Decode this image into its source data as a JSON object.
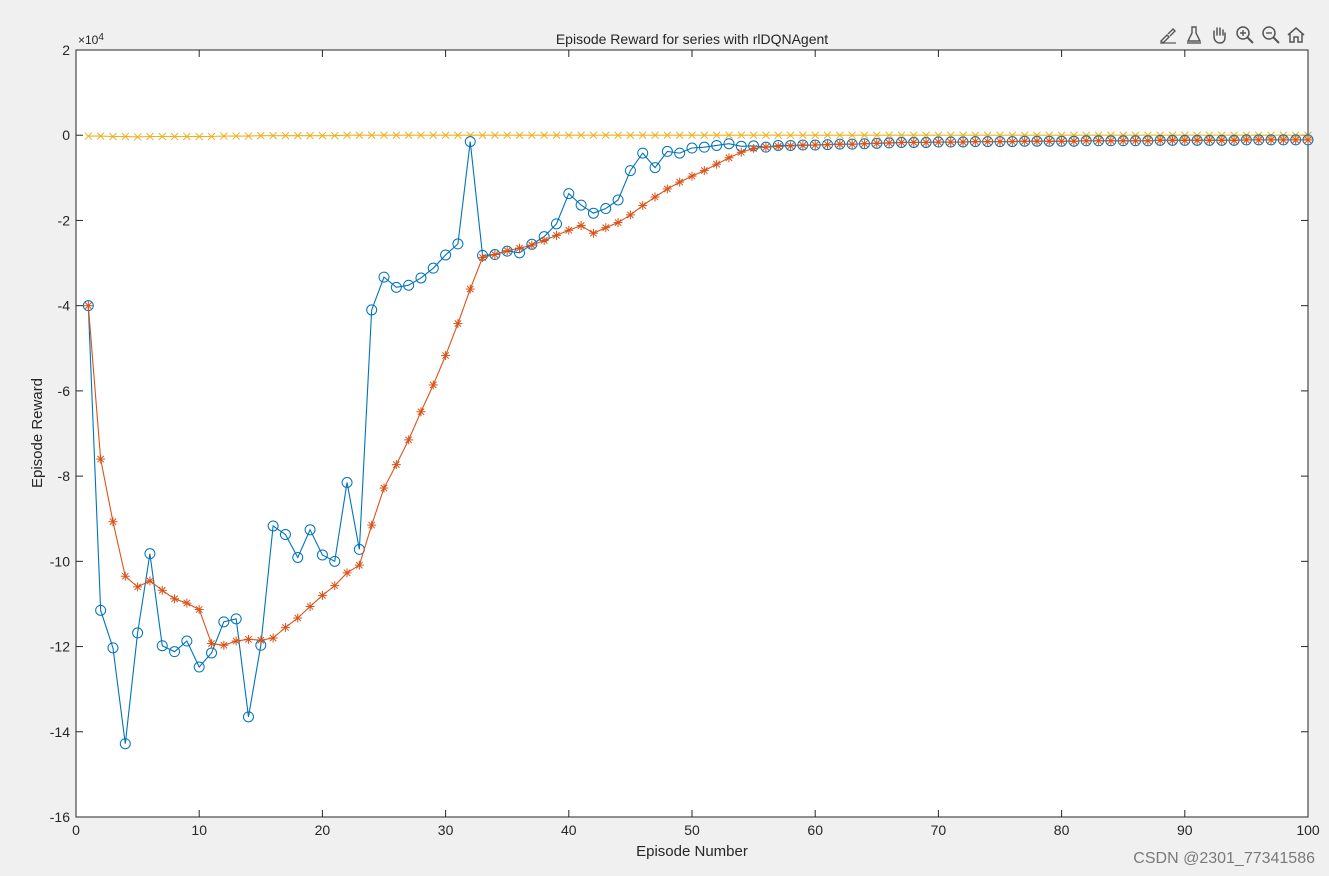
{
  "toolbar": {
    "icons": [
      "brush-icon",
      "data-tips-icon",
      "pan-hand-icon",
      "zoom-in-icon",
      "zoom-out-icon",
      "home-icon"
    ]
  },
  "watermark": "CSDN @2301_77341586",
  "colors": {
    "series_1": "#0072BD",
    "series_2": "#D95319",
    "series_3": "#EDB120",
    "axes_bg": "#ffffff",
    "figure_bg": "#f0f0f0"
  },
  "chart_data": {
    "type": "line",
    "title": "Episode Reward for series with rlDQNAgent",
    "xlabel": "Episode Number",
    "ylabel": "Episode Reward",
    "exponent_label": "×10",
    "exponent_power": "4",
    "xlim": [
      0,
      100
    ],
    "ylim": [
      -16,
      2
    ],
    "y_scale_factor": 10000,
    "xticks": [
      0,
      10,
      20,
      30,
      40,
      50,
      60,
      70,
      80,
      90,
      100
    ],
    "yticks": [
      2,
      0,
      -2,
      -4,
      -6,
      -8,
      -10,
      -12,
      -14,
      -16
    ],
    "grid": false,
    "legend": "none",
    "x": [
      1,
      2,
      3,
      4,
      5,
      6,
      7,
      8,
      9,
      10,
      11,
      12,
      13,
      14,
      15,
      16,
      17,
      18,
      19,
      20,
      21,
      22,
      23,
      24,
      25,
      26,
      27,
      28,
      29,
      30,
      31,
      32,
      33,
      34,
      35,
      36,
      37,
      38,
      39,
      40,
      41,
      42,
      43,
      44,
      45,
      46,
      47,
      48,
      49,
      50,
      51,
      52,
      53,
      54,
      55,
      56,
      57,
      58,
      59,
      60,
      61,
      62,
      63,
      64,
      65,
      66,
      67,
      68,
      69,
      70,
      71,
      72,
      73,
      74,
      75,
      76,
      77,
      78,
      79,
      80,
      81,
      82,
      83,
      84,
      85,
      86,
      87,
      88,
      89,
      90,
      91,
      92,
      93,
      94,
      95,
      96,
      97,
      98,
      99,
      100
    ],
    "series": [
      {
        "marker": "circle",
        "color": "#0072BD",
        "values": [
          -4.0,
          -11.15,
          -12.03,
          -14.28,
          -11.68,
          -9.82,
          -11.98,
          -12.12,
          -11.87,
          -12.48,
          -12.15,
          -11.42,
          -11.35,
          -13.65,
          -11.97,
          -9.17,
          -9.37,
          -9.91,
          -9.26,
          -9.85,
          -10.0,
          -8.15,
          -9.72,
          -4.1,
          -3.33,
          -3.57,
          -3.52,
          -3.35,
          -3.12,
          -2.81,
          -2.55,
          -0.15,
          -2.82,
          -2.8,
          -2.72,
          -2.76,
          -2.56,
          -2.38,
          -2.08,
          -1.37,
          -1.64,
          -1.83,
          -1.72,
          -1.52,
          -0.83,
          -0.42,
          -0.76,
          -0.38,
          -0.42,
          -0.3,
          -0.28,
          -0.24,
          -0.2,
          -0.26,
          -0.25,
          -0.28,
          -0.24,
          -0.24,
          -0.23,
          -0.23,
          -0.22,
          -0.21,
          -0.21,
          -0.2,
          -0.19,
          -0.18,
          -0.17,
          -0.17,
          -0.17,
          -0.16,
          -0.16,
          -0.16,
          -0.15,
          -0.15,
          -0.15,
          -0.15,
          -0.14,
          -0.14,
          -0.14,
          -0.14,
          -0.14,
          -0.13,
          -0.13,
          -0.13,
          -0.13,
          -0.13,
          -0.13,
          -0.12,
          -0.12,
          -0.12,
          -0.12,
          -0.12,
          -0.12,
          -0.12,
          -0.11,
          -0.11,
          -0.11,
          -0.11,
          -0.11,
          -0.11
        ]
      },
      {
        "marker": "asterisk",
        "color": "#D95319",
        "values": [
          -4.0,
          -7.6,
          -9.07,
          -10.35,
          -10.6,
          -10.46,
          -10.68,
          -10.88,
          -10.98,
          -11.13,
          -11.93,
          -11.97,
          -11.87,
          -11.83,
          -11.85,
          -11.8,
          -11.55,
          -11.33,
          -11.06,
          -10.8,
          -10.57,
          -10.27,
          -10.09,
          -9.15,
          -8.28,
          -7.73,
          -7.15,
          -6.49,
          -5.86,
          -5.17,
          -4.42,
          -3.61,
          -2.87,
          -2.8,
          -2.71,
          -2.65,
          -2.58,
          -2.47,
          -2.35,
          -2.23,
          -2.12,
          -2.3,
          -2.17,
          -2.05,
          -1.87,
          -1.65,
          -1.45,
          -1.26,
          -1.1,
          -0.96,
          -0.83,
          -0.68,
          -0.53,
          -0.4,
          -0.31,
          -0.28,
          -0.26,
          -0.25,
          -0.24,
          -0.23,
          -0.22,
          -0.21,
          -0.21,
          -0.2,
          -0.19,
          -0.18,
          -0.17,
          -0.17,
          -0.17,
          -0.16,
          -0.16,
          -0.16,
          -0.15,
          -0.15,
          -0.15,
          -0.15,
          -0.14,
          -0.14,
          -0.14,
          -0.14,
          -0.14,
          -0.13,
          -0.13,
          -0.13,
          -0.13,
          -0.13,
          -0.13,
          -0.12,
          -0.12,
          -0.12,
          -0.12,
          -0.12,
          -0.12,
          -0.12,
          -0.11,
          -0.11,
          -0.11,
          -0.11,
          -0.11,
          -0.11
        ]
      },
      {
        "marker": "x",
        "color": "#EDB120",
        "values": [
          -0.02,
          -0.02,
          -0.03,
          -0.03,
          -0.04,
          -0.03,
          -0.03,
          -0.03,
          -0.03,
          -0.03,
          -0.03,
          -0.02,
          -0.02,
          -0.02,
          -0.01,
          -0.01,
          -0.01,
          -0.01,
          -0.01,
          -0.01,
          -0.01,
          0.0,
          0.0,
          0.0,
          0.0,
          0.0,
          0.0,
          0.0,
          0.0,
          0.0,
          0.0,
          0.0,
          0.0,
          0.0,
          0.0,
          0.0,
          0.0,
          0.0,
          0.0,
          0.0,
          0.0,
          0.0,
          0.0,
          0.0,
          0.0,
          0.0,
          0.0,
          0.0,
          0.0,
          0.0,
          0.0,
          0.0,
          0.0,
          0.0,
          0.0,
          0.0,
          0.0,
          0.0,
          0.0,
          0.0,
          0.0,
          0.0,
          0.0,
          0.0,
          0.0,
          0.0,
          0.0,
          0.0,
          0.0,
          0.0,
          0.0,
          0.0,
          0.0,
          0.0,
          0.0,
          0.0,
          0.0,
          0.0,
          0.0,
          0.0,
          0.0,
          0.0,
          0.0,
          0.0,
          0.0,
          0.0,
          0.0,
          0.0,
          0.0,
          0.0,
          0.0,
          0.0,
          0.0,
          0.0,
          0.0,
          0.0,
          0.0,
          0.0,
          0.0,
          0.0
        ]
      }
    ]
  }
}
